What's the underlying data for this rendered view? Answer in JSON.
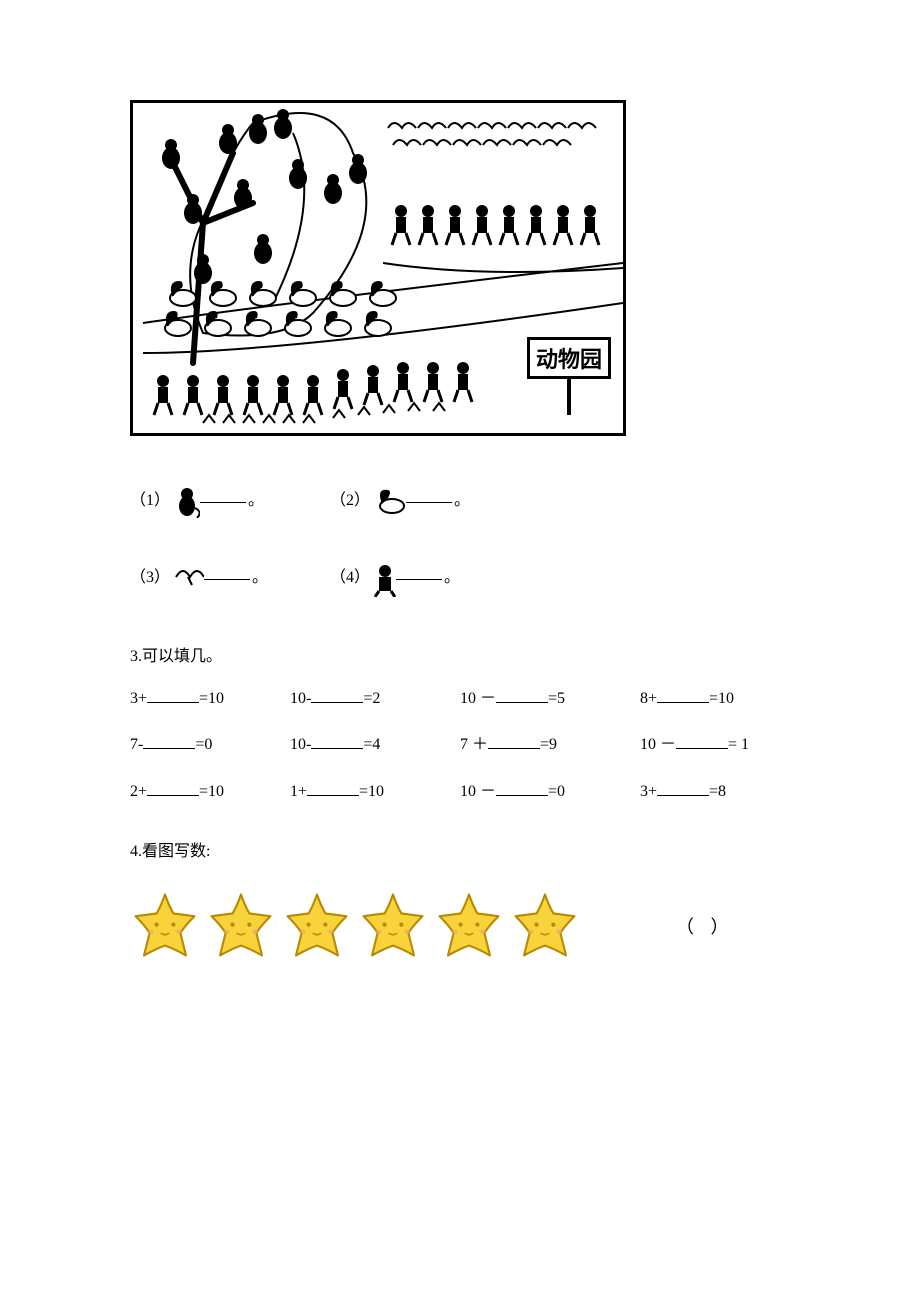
{
  "scene": {
    "sign_label": "动物园",
    "colors": {
      "border": "#000000",
      "background": "#ffffff",
      "line": "#000000",
      "fill_dark": "#000000"
    }
  },
  "count_items": [
    {
      "index": "（1）",
      "name": "monkey",
      "blank": ""
    },
    {
      "index": "（2）",
      "name": "swan",
      "blank": ""
    },
    {
      "index": "（3）",
      "name": "dove",
      "blank": ""
    },
    {
      "index": "（4）",
      "name": "child",
      "blank": ""
    }
  ],
  "section3": {
    "title": "3.可以填几。",
    "rows": [
      [
        {
          "pre": "3+",
          "post": "=10"
        },
        {
          "pre": "10-",
          "post": "=2"
        },
        {
          "pre": "10 －",
          "post": "=5",
          "wrap_before_post": true
        },
        {
          "pre": "8+",
          "post": "=10"
        }
      ],
      [
        {
          "pre": "7-",
          "post": "=0"
        },
        {
          "pre": "10-",
          "post": "=4"
        },
        {
          "pre": "7 ＋",
          "post": "=9"
        },
        {
          "pre": "10 －",
          "post": "= 1",
          "wrap_before_post": true
        }
      ],
      [
        {
          "pre": "2+",
          "post": "=10"
        },
        {
          "pre": "1+",
          "post": "=10"
        },
        {
          "pre": "10 －",
          "post": "=0"
        },
        {
          "pre": "3+",
          "post": "=8"
        }
      ]
    ]
  },
  "section4": {
    "title": "4.看图写数:",
    "stars": {
      "count": 6,
      "fill": "#f9d33c",
      "stroke": "#b88a00",
      "face_color": "#b88a00"
    },
    "answer_placeholder": "（        ）"
  }
}
